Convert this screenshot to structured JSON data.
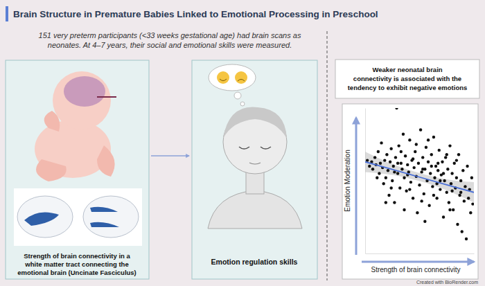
{
  "header": {
    "title": "Brain Structure in Premature Babies Linked to Emotional Processing in Preschool",
    "subtitle": [
      "151 very preterm participants (<33 weeks gestational age) had brain scans as",
      "neonates. At 4–7 years, their social and emotional skills were measured."
    ]
  },
  "panels": [
    {
      "caption": [
        "Strength of brain connectivity in a",
        "white matter tract connecting the",
        "emotional brain (Uncinate Fasciculus)"
      ]
    },
    {
      "caption": [
        "Emotion regulation skills"
      ]
    }
  ],
  "finding": [
    "Weaker neonatal brain",
    "connectivity is associated with the",
    "tendency to exhibit negative emotions"
  ],
  "credit": "Created with BioRender.com",
  "chart_data": {
    "type": "scatter",
    "x_label": "Strength of brain connectivity",
    "y_label": "Emotion Moderation",
    "x": [
      2,
      4,
      6,
      7,
      9,
      10,
      12,
      13,
      14,
      15,
      16,
      17,
      18,
      19,
      20,
      21,
      22,
      23,
      24,
      25,
      26,
      27,
      28,
      29,
      30,
      31,
      32,
      33,
      34,
      35,
      36,
      37,
      38,
      39,
      40,
      41,
      42,
      43,
      44,
      45,
      46,
      47,
      48,
      49,
      50,
      51,
      52,
      53,
      54,
      55,
      56,
      57,
      58,
      59,
      60,
      61,
      62,
      63,
      64,
      65,
      66,
      67,
      68,
      69,
      70,
      71,
      72,
      73,
      74,
      75,
      76,
      77,
      78,
      79,
      80,
      81,
      82,
      83,
      84,
      85,
      86,
      87,
      88,
      89,
      90,
      91,
      92,
      93,
      94,
      95,
      96,
      97,
      98,
      99,
      11,
      24,
      33,
      44,
      52,
      58,
      63,
      67,
      72,
      78,
      84,
      36,
      47,
      27,
      55,
      61,
      69,
      75,
      88,
      41,
      30,
      19,
      66,
      80,
      53,
      39
    ],
    "values": [
      64,
      60,
      63,
      58,
      66,
      61,
      70,
      55,
      62,
      76,
      59,
      48,
      64,
      52,
      68,
      57,
      40,
      63,
      72,
      50,
      60,
      35,
      66,
      100,
      55,
      74,
      45,
      62,
      58,
      82,
      52,
      67,
      43,
      61,
      56,
      78,
      49,
      64,
      38,
      59,
      70,
      53,
      28,
      62,
      47,
      85,
      56,
      66,
      41,
      58,
      73,
      50,
      63,
      33,
      55,
      68,
      46,
      80,
      52,
      60,
      38,
      57,
      71,
      44,
      54,
      63,
      25,
      50,
      66,
      42,
      58,
      35,
      74,
      48,
      55,
      30,
      62,
      45,
      52,
      20,
      68,
      40,
      50,
      15,
      57,
      36,
      46,
      10,
      60,
      38,
      44,
      28,
      52,
      34,
      52,
      45,
      70,
      65,
      36,
      78,
      40,
      62,
      55,
      30,
      64,
      30,
      75,
      56,
      22,
      60,
      50,
      68,
      42,
      44,
      62,
      35,
      48,
      43,
      58,
      54
    ],
    "color": "#111111",
    "xlim": [
      0,
      100
    ],
    "ylim": [
      0,
      100
    ],
    "tick_labels": false,
    "grid": false,
    "trend": {
      "x": [
        0,
        25,
        50,
        75,
        100
      ],
      "values": [
        63,
        57.8,
        52.5,
        47.2,
        42
      ],
      "lower": [
        56,
        54.5,
        50,
        44,
        35
      ],
      "upper": [
        70,
        61,
        55,
        50.5,
        49
      ],
      "color": "#4a6fd6"
    }
  }
}
